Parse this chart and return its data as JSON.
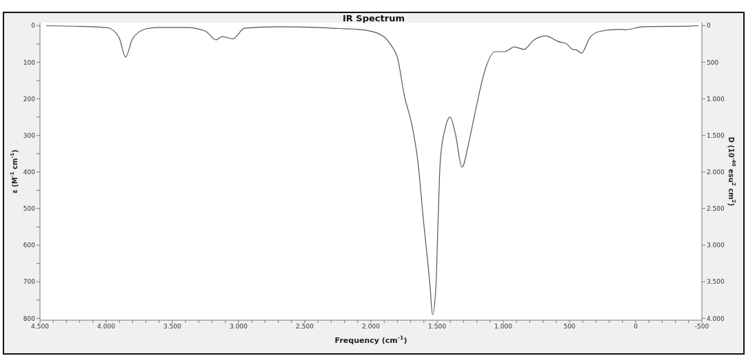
{
  "chart_data": {
    "type": "line",
    "title": "IR Spectrum",
    "xlabel": "Frequency (cm$^{-1}$)",
    "ylabel": "ε (M$^{-1}$ cm$^{-1}$)",
    "y2label": "D (10$^{-40}$ esu$^{2}$ cm$^{2}$)",
    "series": [
      {
        "color": "#555555",
        "x": [
          4454,
          4200,
          4000,
          3950,
          3900,
          3853,
          3800,
          3700,
          3600,
          3400,
          3250,
          3170,
          3125,
          3042,
          2955,
          2700,
          2400,
          2236,
          2100,
          1961,
          1851,
          1796,
          1750,
          1688,
          1646,
          1605,
          1553,
          1535,
          1509,
          1492,
          1476,
          1440,
          1401,
          1363,
          1312,
          1261,
          1210,
          1137,
          1063,
          989,
          917,
          845,
          768,
          678,
          588,
          522,
          475,
          450,
          409,
          347,
          275,
          126,
          75,
          -53,
          -423,
          -477
        ],
        "values": [
          0,
          2,
          5,
          12,
          35,
          86,
          35,
          9,
          5,
          5,
          15,
          39,
          30,
          36,
          7,
          3,
          5,
          8,
          10,
          19,
          52,
          93,
          187,
          276,
          369,
          525,
          713,
          790,
          713,
          525,
          369,
          282,
          250,
          294,
          387,
          320,
          232,
          120,
          71,
          71,
          58,
          65,
          39,
          28,
          43,
          50,
          65,
          66,
          75,
          33,
          16,
          10,
          11,
          3,
          1,
          0
        ]
      }
    ],
    "xlim": [
      4500,
      -500
    ],
    "xticks": [
      {
        "value": 4500,
        "label": "4.500"
      },
      {
        "value": 4400,
        "label": null
      },
      {
        "value": 4300,
        "label": null
      },
      {
        "value": 4200,
        "label": null
      },
      {
        "value": 4100,
        "label": null
      },
      {
        "value": 4000,
        "label": "4.000"
      },
      {
        "value": 3900,
        "label": null
      },
      {
        "value": 3800,
        "label": null
      },
      {
        "value": 3700,
        "label": null
      },
      {
        "value": 3600,
        "label": null
      },
      {
        "value": 3500,
        "label": "3.500"
      },
      {
        "value": 3400,
        "label": null
      },
      {
        "value": 3300,
        "label": null
      },
      {
        "value": 3200,
        "label": null
      },
      {
        "value": 3100,
        "label": null
      },
      {
        "value": 3000,
        "label": "3.000"
      },
      {
        "value": 2900,
        "label": null
      },
      {
        "value": 2800,
        "label": null
      },
      {
        "value": 2700,
        "label": null
      },
      {
        "value": 2600,
        "label": null
      },
      {
        "value": 2500,
        "label": "2.500"
      },
      {
        "value": 2400,
        "label": null
      },
      {
        "value": 2300,
        "label": null
      },
      {
        "value": 2200,
        "label": null
      },
      {
        "value": 2100,
        "label": null
      },
      {
        "value": 2000,
        "label": "2.000"
      },
      {
        "value": 1900,
        "label": null
      },
      {
        "value": 1800,
        "label": null
      },
      {
        "value": 1700,
        "label": null
      },
      {
        "value": 1600,
        "label": null
      },
      {
        "value": 1500,
        "label": "1.500"
      },
      {
        "value": 1400,
        "label": null
      },
      {
        "value": 1300,
        "label": null
      },
      {
        "value": 1200,
        "label": null
      },
      {
        "value": 1100,
        "label": null
      },
      {
        "value": 1000,
        "label": "1.000"
      },
      {
        "value": 900,
        "label": null
      },
      {
        "value": 800,
        "label": null
      },
      {
        "value": 700,
        "label": null
      },
      {
        "value": 600,
        "label": null
      },
      {
        "value": 500,
        "label": "500"
      },
      {
        "value": 400,
        "label": null
      },
      {
        "value": 300,
        "label": null
      },
      {
        "value": 200,
        "label": null
      },
      {
        "value": 100,
        "label": null
      },
      {
        "value": 0,
        "label": "0"
      },
      {
        "value": -100,
        "label": null
      },
      {
        "value": -200,
        "label": null
      },
      {
        "value": -300,
        "label": null
      },
      {
        "value": -400,
        "label": null
      },
      {
        "value": -500,
        "label": "-500"
      }
    ],
    "ylim": [
      805,
      -8
    ],
    "yticks": [
      0,
      {
        "value": 50,
        "label": null
      },
      100,
      {
        "value": 150,
        "label": null
      },
      200,
      {
        "value": 250,
        "label": null
      },
      300,
      {
        "value": 350,
        "label": null
      },
      400,
      {
        "value": 450,
        "label": null
      },
      500,
      {
        "value": 550,
        "label": null
      },
      600,
      {
        "value": 650,
        "label": null
      },
      700,
      {
        "value": 750,
        "label": null
      },
      800
    ],
    "y2lim": [
      4025,
      -40
    ],
    "y2ticks": [
      0,
      500,
      {
        "value": 1000,
        "label": "1.000"
      },
      {
        "value": 1500,
        "label": "1.500"
      },
      {
        "value": 2000,
        "label": "2.000"
      },
      {
        "value": 2500,
        "label": "2.500"
      },
      {
        "value": 3000,
        "label": "3.000"
      },
      {
        "value": 3500,
        "label": "3.500"
      },
      {
        "value": 4000,
        "label": "4.000"
      }
    ],
    "grid": false,
    "legend": false,
    "marker": "none",
    "line_style": "solid"
  }
}
